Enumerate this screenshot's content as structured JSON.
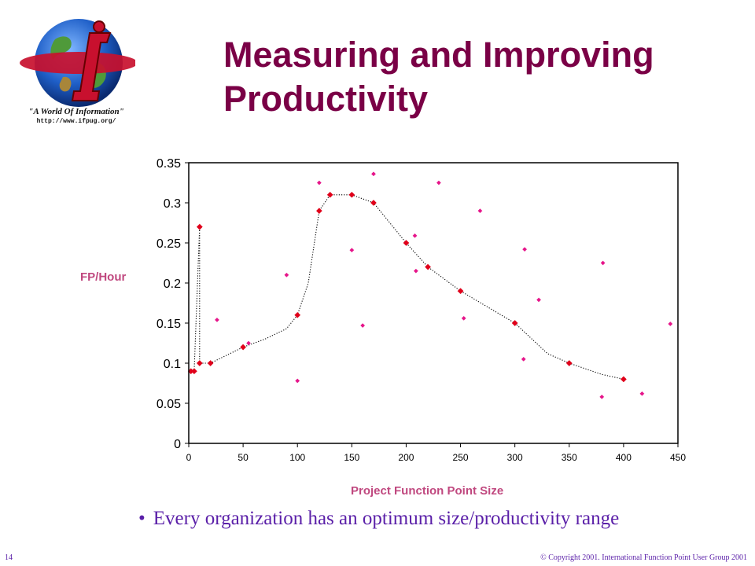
{
  "logo": {
    "icon": "globe-i-logo-icon",
    "tagline": "\"A World Of Information\"",
    "url": "http://www.ifpug.org/"
  },
  "title": {
    "line1": "Measuring and Improving",
    "line2": "Productivity"
  },
  "bullet": {
    "marker": "•",
    "text": "Every organization has an optimum size/productivity range"
  },
  "footer": {
    "page_number": "14",
    "copyright": "© Copyright 2001. International Function Point User Group 2001"
  },
  "colors": {
    "title": "#7a0046",
    "axis_label": "#c0487f",
    "marker": "#e0001a",
    "scatter_marker": "#e6158a",
    "bullet_text": "#5a1fa8"
  },
  "chart_data": {
    "type": "scatter",
    "title": "",
    "xlabel": "Project Function Point Size",
    "ylabel": "FP/Hour",
    "xlim": [
      0,
      450
    ],
    "ylim": [
      0,
      0.35
    ],
    "x_ticks": [
      0,
      50,
      100,
      150,
      200,
      250,
      300,
      350,
      400,
      450
    ],
    "y_ticks": [
      0,
      0.05,
      0.1,
      0.15,
      0.2,
      0.25,
      0.3,
      0.35
    ],
    "y_tick_labels": [
      "0",
      "0.05",
      "0.1",
      "0.15",
      "0.2",
      "0.25",
      "0.3",
      "0.35"
    ],
    "grid": false,
    "series": [
      {
        "points": [
          [
            2,
            0.09
          ],
          [
            5,
            0.09
          ],
          [
            10,
            0.1
          ],
          [
            10,
            0.27
          ],
          [
            20,
            0.1
          ],
          [
            50,
            0.12
          ],
          [
            100,
            0.16
          ],
          [
            120,
            0.29
          ],
          [
            130,
            0.31
          ],
          [
            150,
            0.31
          ],
          [
            170,
            0.3
          ],
          [
            200,
            0.25
          ],
          [
            220,
            0.22
          ],
          [
            250,
            0.19
          ],
          [
            300,
            0.15
          ],
          [
            350,
            0.1
          ],
          [
            400,
            0.08
          ]
        ]
      },
      {
        "points": [
          [
            26,
            0.154
          ],
          [
            55,
            0.125
          ],
          [
            90,
            0.21
          ],
          [
            100,
            0.078
          ],
          [
            120,
            0.325
          ],
          [
            150,
            0.241
          ],
          [
            160,
            0.147
          ],
          [
            170,
            0.336
          ],
          [
            208,
            0.259
          ],
          [
            209,
            0.215
          ],
          [
            230,
            0.325
          ],
          [
            253,
            0.156
          ],
          [
            268,
            0.29
          ],
          [
            308,
            0.105
          ],
          [
            309,
            0.242
          ],
          [
            322,
            0.179
          ],
          [
            380,
            0.058
          ],
          [
            381,
            0.225
          ],
          [
            417,
            0.062
          ],
          [
            443,
            0.149
          ]
        ]
      }
    ],
    "trendline": {
      "style": "dotted",
      "points": [
        [
          2,
          0.09
        ],
        [
          5,
          0.09
        ],
        [
          10,
          0.27
        ],
        [
          10,
          0.1
        ],
        [
          20,
          0.1
        ],
        [
          50,
          0.12
        ],
        [
          70,
          0.13
        ],
        [
          90,
          0.143
        ],
        [
          100,
          0.16
        ],
        [
          110,
          0.2
        ],
        [
          120,
          0.29
        ],
        [
          130,
          0.31
        ],
        [
          150,
          0.31
        ],
        [
          170,
          0.3
        ],
        [
          200,
          0.25
        ],
        [
          220,
          0.22
        ],
        [
          250,
          0.19
        ],
        [
          300,
          0.15
        ],
        [
          330,
          0.112
        ],
        [
          350,
          0.1
        ],
        [
          380,
          0.086
        ],
        [
          400,
          0.08
        ]
      ]
    }
  }
}
